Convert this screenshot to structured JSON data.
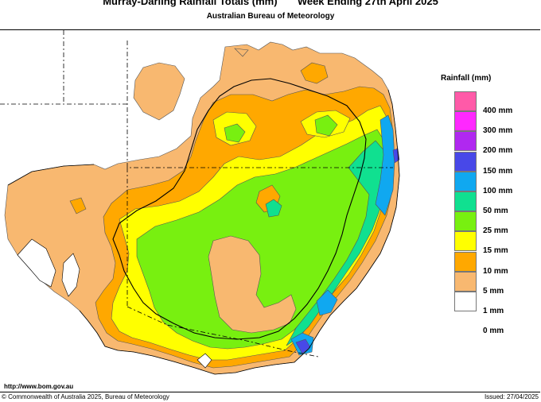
{
  "title": {
    "main": "Murray-Darling Rainfall Totals (mm)       Week Ending 27th April 2025",
    "subtitle": "Australian Bureau of Meteorology"
  },
  "legend": {
    "title": "Rainfall (mm)",
    "items": [
      {
        "label": "400 mm",
        "color": "#ff5aa8"
      },
      {
        "label": "300 mm",
        "color": "#ff28ff"
      },
      {
        "label": "200 mm",
        "color": "#b028f0"
      },
      {
        "label": "150 mm",
        "color": "#4848e8"
      },
      {
        "label": "100 mm",
        "color": "#10a8f0"
      },
      {
        "label": "50 mm",
        "color": "#10e090"
      },
      {
        "label": "25 mm",
        "color": "#78f010"
      },
      {
        "label": "15 mm",
        "color": "#ffff00"
      },
      {
        "label": "10 mm",
        "color": "#ffa800"
      },
      {
        "label": "5 mm",
        "color": "#f8b870"
      },
      {
        "label": "1 mm",
        "color": "#ffffff"
      },
      {
        "label": "0 mm",
        "color": ""
      }
    ]
  },
  "footer": {
    "url": "http://www.bom.gov.au",
    "copyright": "© Commonwealth of Australia 2025, Bureau of Meteorology",
    "issued": "Issued: 27/04/2025"
  }
}
